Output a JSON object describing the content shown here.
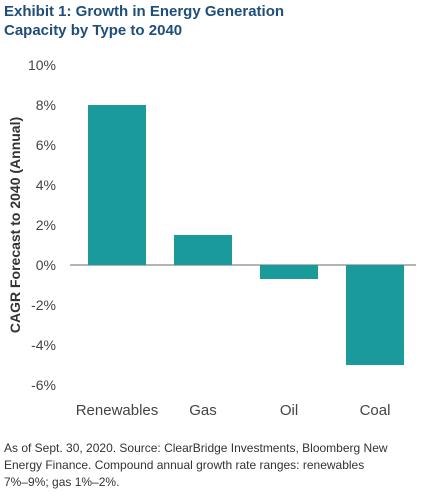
{
  "title": {
    "line1": "Exhibit 1: Growth in Energy Generation",
    "line2": "Capacity by Type to 2040"
  },
  "source": {
    "line1": "As of Sept. 30, 2020. Source: ClearBridge Investments, Bloomberg New",
    "line2": "Energy Finance. Compound annual growth rate ranges: renewables",
    "line3": "7%–9%; gas 1%–2%."
  },
  "colors": {
    "bar": "#1a9a9a",
    "axis": "#6a6a6a",
    "title": "#1f4e79"
  },
  "chart_data": {
    "type": "bar",
    "categories": [
      "Renewables",
      "Gas",
      "Oil",
      "Coal"
    ],
    "values": [
      8.0,
      1.5,
      -0.7,
      -5.0
    ],
    "ylabel": "CAGR Forecast to 2040 (Annual)",
    "xlabel": "",
    "ylim": [
      -6,
      10
    ],
    "yticks": [
      10,
      8,
      6,
      4,
      2,
      0,
      -2,
      -4,
      -6
    ],
    "ytick_labels": [
      "10%",
      "8%",
      "6%",
      "4%",
      "2%",
      "0%",
      "-2%",
      "-4%",
      "-6%"
    ],
    "grid": false,
    "legend": "none"
  }
}
